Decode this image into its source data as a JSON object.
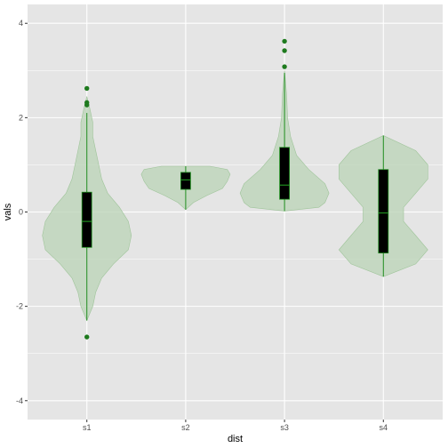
{
  "chart_data": {
    "type": "violin",
    "xlabel": "dist",
    "ylabel": "vals",
    "ylim": [
      -4.4,
      4.4
    ],
    "y_ticks": [
      -4,
      -2,
      0,
      2,
      4
    ],
    "categories": [
      "s1",
      "s2",
      "s3",
      "s4"
    ],
    "grid": true,
    "colors": {
      "panel": "#e5e5e5",
      "grid_major": "#ffffff",
      "violin_fill": "#b9d3b5",
      "violin_stroke": "#9fc49a",
      "box_fill": "#000000",
      "box_line": "#1e8c1e",
      "outlier": "#1e7a1e"
    },
    "violins": [
      {
        "category": "s1",
        "profile": [
          [
            -2.3,
            0.0
          ],
          [
            -2.0,
            0.02
          ],
          [
            -1.7,
            0.03
          ],
          [
            -1.4,
            0.05
          ],
          [
            -1.1,
            0.09
          ],
          [
            -0.8,
            0.14
          ],
          [
            -0.5,
            0.15
          ],
          [
            -0.2,
            0.14
          ],
          [
            0.1,
            0.11
          ],
          [
            0.4,
            0.07
          ],
          [
            0.7,
            0.05
          ],
          [
            1.0,
            0.04
          ],
          [
            1.3,
            0.03
          ],
          [
            1.6,
            0.02
          ],
          [
            1.9,
            0.02
          ],
          [
            2.2,
            0.01
          ],
          [
            2.45,
            0.0
          ]
        ],
        "box": {
          "q1": -0.75,
          "median": -0.2,
          "q3": 0.42,
          "whisker_low": -2.3,
          "whisker_high": 2.1
        },
        "outliers": [
          2.62,
          2.32,
          2.27,
          -2.65
        ]
      },
      {
        "category": "s2",
        "profile": [
          [
            0.05,
            0.0
          ],
          [
            0.2,
            0.08
          ],
          [
            0.35,
            0.22
          ],
          [
            0.5,
            0.38
          ],
          [
            0.65,
            0.43
          ],
          [
            0.8,
            0.46
          ],
          [
            0.9,
            0.43
          ],
          [
            0.97,
            0.25
          ]
        ],
        "box": {
          "q1": 0.48,
          "median": 0.68,
          "q3": 0.84,
          "whisker_low": 0.05,
          "whisker_high": 0.97
        },
        "outliers": []
      },
      {
        "category": "s3",
        "profile": [
          [
            0.02,
            0.0
          ],
          [
            0.1,
            0.17
          ],
          [
            0.2,
            0.2
          ],
          [
            0.4,
            0.22
          ],
          [
            0.6,
            0.2
          ],
          [
            0.9,
            0.12
          ],
          [
            1.2,
            0.06
          ],
          [
            1.6,
            0.03
          ],
          [
            2.0,
            0.015
          ],
          [
            2.5,
            0.01
          ],
          [
            3.0,
            0.0
          ]
        ],
        "box": {
          "q1": 0.27,
          "median": 0.57,
          "q3": 1.37,
          "whisker_low": 0.02,
          "whisker_high": 2.95
        },
        "outliers": [
          3.62,
          3.42,
          3.08
        ]
      },
      {
        "category": "s4",
        "profile": [
          [
            -1.37,
            0.0
          ],
          [
            -1.1,
            0.08
          ],
          [
            -0.8,
            0.11
          ],
          [
            -0.5,
            0.08
          ],
          [
            -0.2,
            0.05
          ],
          [
            0.1,
            0.05
          ],
          [
            0.4,
            0.08
          ],
          [
            0.7,
            0.11
          ],
          [
            1.0,
            0.11
          ],
          [
            1.3,
            0.08
          ],
          [
            1.62,
            0.0
          ]
        ],
        "box": {
          "q1": -0.87,
          "median": -0.02,
          "q3": 0.9,
          "whisker_low": -1.37,
          "whisker_high": 1.62
        },
        "outliers": []
      }
    ]
  }
}
